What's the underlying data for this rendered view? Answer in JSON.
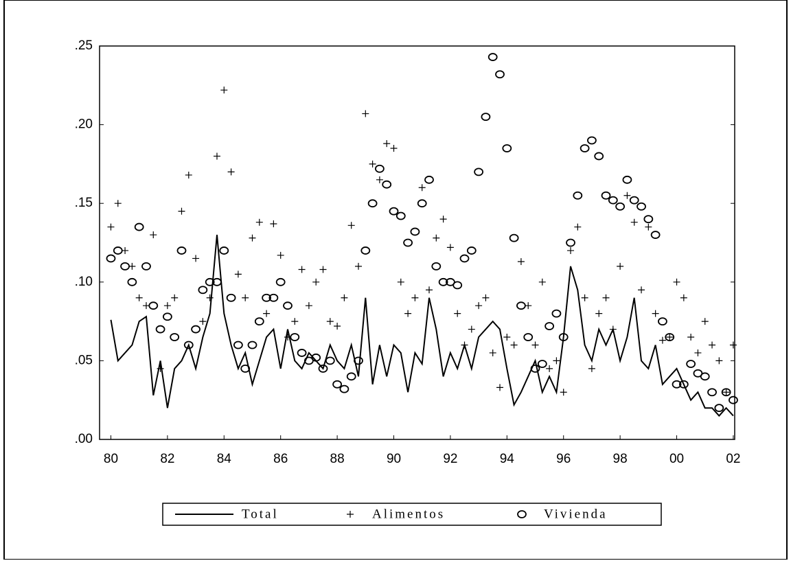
{
  "chart_data": {
    "type": "line",
    "x": [
      1980,
      1980.25,
      1980.5,
      1980.75,
      1981,
      1981.25,
      1981.5,
      1981.75,
      1982,
      1982.25,
      1982.5,
      1982.75,
      1983,
      1983.25,
      1983.5,
      1983.75,
      1984,
      1984.25,
      1984.5,
      1984.75,
      1985,
      1985.25,
      1985.5,
      1985.75,
      1986,
      1986.25,
      1986.5,
      1986.75,
      1987,
      1987.25,
      1987.5,
      1987.75,
      1988,
      1988.25,
      1988.5,
      1988.75,
      1989,
      1989.25,
      1989.5,
      1989.75,
      1990,
      1990.25,
      1990.5,
      1990.75,
      1991,
      1991.25,
      1991.5,
      1991.75,
      1992,
      1992.25,
      1992.5,
      1992.75,
      1993,
      1993.25,
      1993.5,
      1993.75,
      1994,
      1994.25,
      1994.5,
      1994.75,
      1995,
      1995.25,
      1995.5,
      1995.75,
      1996,
      1996.25,
      1996.5,
      1996.75,
      1997,
      1997.25,
      1997.5,
      1997.75,
      1998,
      1998.25,
      1998.5,
      1998.75,
      1999,
      1999.25,
      1999.5,
      1999.75,
      2000,
      2000.25,
      2000.5,
      2000.75,
      2001,
      2001.25,
      2001.5,
      2001.75,
      2002
    ],
    "series": [
      {
        "name": "Total",
        "style": "line",
        "color": "#000000",
        "values": [
          0.076,
          0.05,
          0.055,
          0.06,
          0.075,
          0.078,
          0.028,
          0.05,
          0.02,
          0.045,
          0.05,
          0.06,
          0.045,
          0.065,
          0.08,
          0.13,
          0.08,
          0.06,
          0.045,
          0.055,
          0.035,
          0.05,
          0.065,
          0.07,
          0.045,
          0.07,
          0.05,
          0.045,
          0.055,
          0.05,
          0.045,
          0.06,
          0.05,
          0.045,
          0.06,
          0.04,
          0.09,
          0.035,
          0.06,
          0.04,
          0.06,
          0.055,
          0.03,
          0.055,
          0.048,
          0.09,
          0.07,
          0.04,
          0.055,
          0.045,
          0.06,
          0.045,
          0.065,
          0.07,
          0.075,
          0.07,
          0.045,
          0.022,
          0.03,
          0.04,
          0.05,
          0.03,
          0.04,
          0.03,
          0.065,
          0.11,
          0.095,
          0.06,
          0.05,
          0.07,
          0.06,
          0.07,
          0.05,
          0.065,
          0.09,
          0.05,
          0.045,
          0.06,
          0.035,
          0.04,
          0.045,
          0.035,
          0.025,
          0.03,
          0.02,
          0.02,
          0.015,
          0.02,
          0.015
        ]
      },
      {
        "name": "Alimentos",
        "style": "plus",
        "color": "#000000",
        "values": [
          0.135,
          0.15,
          0.12,
          0.11,
          0.09,
          0.085,
          0.13,
          0.045,
          0.085,
          0.09,
          0.145,
          0.168,
          0.115,
          0.075,
          0.09,
          0.18,
          0.222,
          0.17,
          0.105,
          0.09,
          0.128,
          0.138,
          0.08,
          0.137,
          0.117,
          0.065,
          0.075,
          0.108,
          0.085,
          0.1,
          0.108,
          0.075,
          0.072,
          0.09,
          0.136,
          0.11,
          0.207,
          0.175,
          0.165,
          0.188,
          0.185,
          0.1,
          0.08,
          0.09,
          0.16,
          0.095,
          0.128,
          0.14,
          0.122,
          0.08,
          0.06,
          0.07,
          0.085,
          0.09,
          0.055,
          0.033,
          0.065,
          0.06,
          0.113,
          0.085,
          0.06,
          0.1,
          0.045,
          0.05,
          0.03,
          0.12,
          0.135,
          0.09,
          0.045,
          0.08,
          0.09,
          0.07,
          0.11,
          0.155,
          0.138,
          0.095,
          0.135,
          0.08,
          0.063,
          0.065,
          0.1,
          0.09,
          0.065,
          0.055,
          0.075,
          0.06,
          0.05,
          0.03,
          0.06
        ]
      },
      {
        "name": "Vivienda",
        "style": "circle",
        "color": "#000000",
        "values": [
          0.115,
          0.12,
          0.11,
          0.1,
          0.135,
          0.11,
          0.085,
          0.07,
          0.078,
          0.065,
          0.12,
          0.06,
          0.07,
          0.095,
          0.1,
          0.1,
          0.12,
          0.09,
          0.06,
          0.045,
          0.06,
          0.075,
          0.09,
          0.09,
          0.1,
          0.085,
          0.065,
          0.055,
          0.05,
          0.052,
          0.045,
          0.05,
          0.035,
          0.032,
          0.04,
          0.05,
          0.12,
          0.15,
          0.172,
          0.162,
          0.145,
          0.142,
          0.125,
          0.132,
          0.15,
          0.165,
          0.11,
          0.1,
          0.1,
          0.098,
          0.115,
          0.12,
          0.17,
          0.205,
          0.243,
          0.232,
          0.185,
          0.128,
          0.085,
          0.065,
          0.045,
          0.048,
          0.072,
          0.08,
          0.065,
          0.125,
          0.155,
          0.185,
          0.19,
          0.18,
          0.155,
          0.152,
          0.148,
          0.165,
          0.152,
          0.148,
          0.14,
          0.13,
          0.075,
          0.065,
          0.035,
          0.035,
          0.048,
          0.042,
          0.04,
          0.03,
          0.02,
          0.03,
          0.025
        ]
      }
    ],
    "xlim": [
      1979.6,
      2002.05
    ],
    "xticks": [
      {
        "value": 1980,
        "label": "80"
      },
      {
        "value": 1982,
        "label": "82"
      },
      {
        "value": 1984,
        "label": "84"
      },
      {
        "value": 1986,
        "label": "86"
      },
      {
        "value": 1988,
        "label": "88"
      },
      {
        "value": 1990,
        "label": "90"
      },
      {
        "value": 1992,
        "label": "92"
      },
      {
        "value": 1994,
        "label": "94"
      },
      {
        "value": 1996,
        "label": "96"
      },
      {
        "value": 1998,
        "label": "98"
      },
      {
        "value": 2000,
        "label": "00"
      },
      {
        "value": 2002,
        "label": "02"
      }
    ],
    "ylim": [
      0,
      0.25
    ],
    "yticks": [
      {
        "value": 0,
        "label": ".00"
      },
      {
        "value": 0.05,
        "label": ".05"
      },
      {
        "value": 0.1,
        "label": ".10"
      },
      {
        "value": 0.15,
        "label": ".15"
      },
      {
        "value": 0.2,
        "label": ".20"
      },
      {
        "value": 0.25,
        "label": ".25"
      }
    ],
    "legend": "bottom"
  }
}
